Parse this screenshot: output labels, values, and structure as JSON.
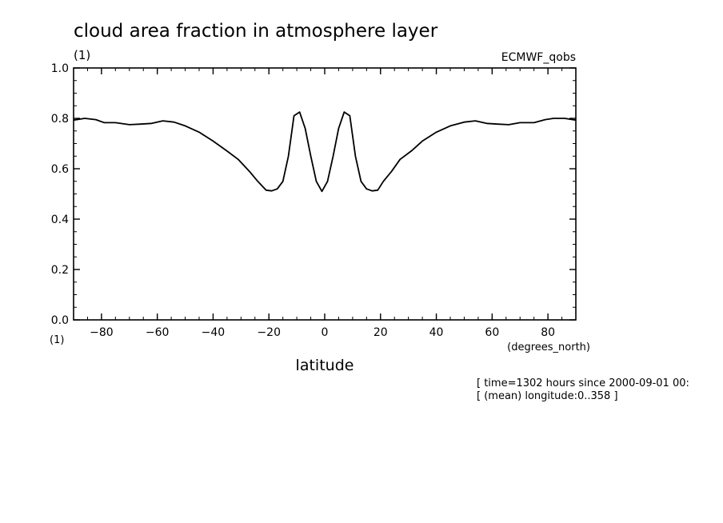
{
  "chart_data": {
    "type": "line",
    "title": "cloud area fraction in atmosphere layer",
    "y_units": "(1)",
    "x_units_left": "(1)",
    "dataset_label": "ECMWF_qobs",
    "xlabel": "latitude",
    "xlabel_units": "(degrees_north)",
    "notes": [
      "[ time=1302 hours since 2000-09-01 00:",
      "[ (mean) longitude:0..358 ]"
    ],
    "xlim": [
      -90,
      90
    ],
    "ylim": [
      0.0,
      1.0
    ],
    "x_ticks": [
      -80,
      -60,
      -40,
      -20,
      0,
      20,
      40,
      60,
      80
    ],
    "x_tick_labels": [
      "−80",
      "−60",
      "−40",
      "−20",
      "0",
      "20",
      "40",
      "60",
      "80"
    ],
    "y_ticks": [
      0.0,
      0.2,
      0.4,
      0.6,
      0.8,
      1.0
    ],
    "y_tick_labels": [
      "0.0",
      "0.2",
      "0.4",
      "0.6",
      "0.8",
      "1.0"
    ],
    "grid": false,
    "series": [
      {
        "x": [
          -90,
          -86,
          -82,
          -79,
          -75,
          -70,
          -66,
          -62,
          -58,
          -54,
          -50,
          -45,
          -40,
          -35,
          -31,
          -27,
          -24,
          -21,
          -19,
          -17,
          -15,
          -13,
          -11,
          -9,
          -7,
          -5,
          -3,
          -1,
          1,
          3,
          5,
          7,
          9,
          11,
          13,
          15,
          17,
          19,
          21,
          24,
          27,
          31,
          35,
          40,
          45,
          50,
          54,
          58,
          62,
          66,
          70,
          75,
          79,
          82,
          86,
          90
        ],
        "y": [
          0.793,
          0.8,
          0.795,
          0.783,
          0.783,
          0.775,
          0.777,
          0.78,
          0.79,
          0.785,
          0.77,
          0.745,
          0.71,
          0.67,
          0.637,
          0.59,
          0.55,
          0.515,
          0.512,
          0.52,
          0.55,
          0.65,
          0.81,
          0.825,
          0.76,
          0.65,
          0.55,
          0.51,
          0.55,
          0.65,
          0.76,
          0.825,
          0.81,
          0.65,
          0.55,
          0.52,
          0.512,
          0.515,
          0.55,
          0.59,
          0.637,
          0.67,
          0.71,
          0.745,
          0.77,
          0.785,
          0.79,
          0.78,
          0.777,
          0.775,
          0.783,
          0.783,
          0.795,
          0.8,
          0.8,
          0.793
        ]
      }
    ]
  }
}
